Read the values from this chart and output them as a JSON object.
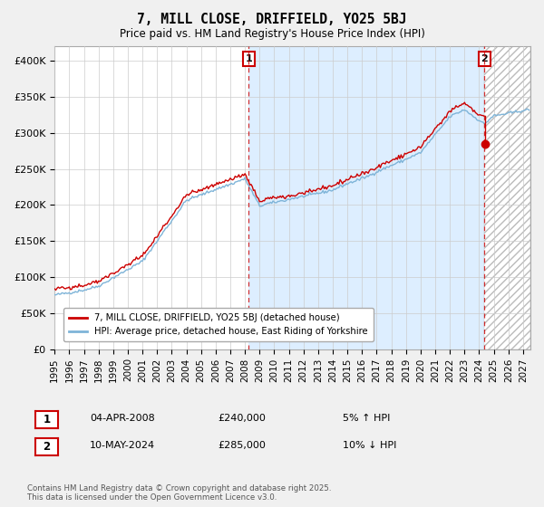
{
  "title": "7, MILL CLOSE, DRIFFIELD, YO25 5BJ",
  "subtitle": "Price paid vs. HM Land Registry's House Price Index (HPI)",
  "ylabel_ticks": [
    "£0",
    "£50K",
    "£100K",
    "£150K",
    "£200K",
    "£250K",
    "£300K",
    "£350K",
    "£400K"
  ],
  "ytick_values": [
    0,
    50000,
    100000,
    150000,
    200000,
    250000,
    300000,
    350000,
    400000
  ],
  "ylim": [
    0,
    420000
  ],
  "xlim_start": 1995.0,
  "xlim_end": 2027.5,
  "hpi_color": "#7eb4d8",
  "price_color": "#cc0000",
  "shade_color": "#ddeeff",
  "hatch_color": "#cccccc",
  "marker1_year": 2008.25,
  "marker1_price": 240000,
  "marker1_label": "1",
  "marker2_year": 2024.37,
  "marker2_price": 285000,
  "marker2_label": "2",
  "legend_line1": "7, MILL CLOSE, DRIFFIELD, YO25 5BJ (detached house)",
  "legend_line2": "HPI: Average price, detached house, East Riding of Yorkshire",
  "annotation1_date": "04-APR-2008",
  "annotation1_price": "£240,000",
  "annotation1_hpi": "5% ↑ HPI",
  "annotation2_date": "10-MAY-2024",
  "annotation2_price": "£285,000",
  "annotation2_hpi": "10% ↓ HPI",
  "footer": "Contains HM Land Registry data © Crown copyright and database right 2025.\nThis data is licensed under the Open Government Licence v3.0.",
  "bg_color": "#f0f0f0",
  "plot_bg_color": "#ffffff",
  "grid_color": "#cccccc"
}
